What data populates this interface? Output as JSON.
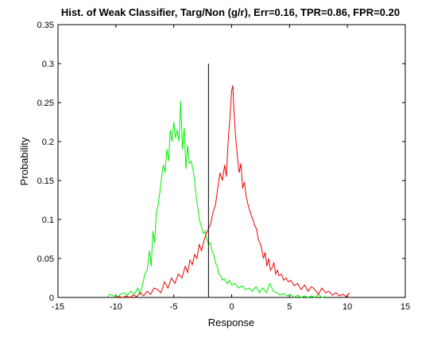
{
  "chart_data": {
    "type": "line",
    "title": "Hist. of Weak Classifier, Targ/Non (g/r), Err=0.16, TPR=0.86, FPR=0.20",
    "xlabel": "Response",
    "ylabel": "Probability",
    "xlim": [
      -15,
      15
    ],
    "ylim": [
      0,
      0.35
    ],
    "xticks": [
      -15,
      -10,
      -5,
      0,
      5,
      10,
      15
    ],
    "yticks": [
      0,
      0.05,
      0.1,
      0.15,
      0.2,
      0.25,
      0.3,
      0.35
    ],
    "xtick_labels": [
      "-15",
      "-10",
      "-5",
      "0",
      "5",
      "10",
      "15"
    ],
    "ytick_labels": [
      "0",
      "0.05",
      "0.1",
      "0.15",
      "0.2",
      "0.25",
      "0.3",
      "0.35"
    ],
    "grid": false,
    "series": [
      {
        "color": "#00ee00",
        "points": [
          [
            -10.8,
            0.0
          ],
          [
            -10.5,
            0.004
          ],
          [
            -10.2,
            0.002
          ],
          [
            -9.9,
            0.001
          ],
          [
            -9.6,
            0.004
          ],
          [
            -9.3,
            0.006
          ],
          [
            -9.0,
            0.003
          ],
          [
            -8.7,
            0.008
          ],
          [
            -8.4,
            0.004
          ],
          [
            -8.1,
            0.012
          ],
          [
            -7.9,
            0.004
          ],
          [
            -7.7,
            0.016
          ],
          [
            -7.5,
            0.03
          ],
          [
            -7.3,
            0.035
          ],
          [
            -7.1,
            0.06
          ],
          [
            -6.95,
            0.04
          ],
          [
            -6.8,
            0.085
          ],
          [
            -6.65,
            0.07
          ],
          [
            -6.5,
            0.11
          ],
          [
            -6.35,
            0.118
          ],
          [
            -6.2,
            0.135
          ],
          [
            -6.05,
            0.155
          ],
          [
            -5.9,
            0.17
          ],
          [
            -5.75,
            0.16
          ],
          [
            -5.6,
            0.19
          ],
          [
            -5.45,
            0.175
          ],
          [
            -5.3,
            0.215
          ],
          [
            -5.15,
            0.2
          ],
          [
            -5.0,
            0.225
          ],
          [
            -4.85,
            0.205
          ],
          [
            -4.7,
            0.215
          ],
          [
            -4.55,
            0.2
          ],
          [
            -4.4,
            0.252
          ],
          [
            -4.25,
            0.19
          ],
          [
            -4.1,
            0.218
          ],
          [
            -3.95,
            0.165
          ],
          [
            -3.8,
            0.195
          ],
          [
            -3.65,
            0.172
          ],
          [
            -3.5,
            0.175
          ],
          [
            -3.35,
            0.165
          ],
          [
            -3.2,
            0.15
          ],
          [
            -3.05,
            0.128
          ],
          [
            -2.9,
            0.112
          ],
          [
            -2.75,
            0.098
          ],
          [
            -2.6,
            0.09
          ],
          [
            -2.45,
            0.082
          ],
          [
            -2.3,
            0.085
          ],
          [
            -2.15,
            0.075
          ],
          [
            -2.0,
            0.068
          ],
          [
            -1.85,
            0.07
          ],
          [
            -1.7,
            0.06
          ],
          [
            -1.55,
            0.055
          ],
          [
            -1.4,
            0.045
          ],
          [
            -1.25,
            0.04
          ],
          [
            -1.1,
            0.03
          ],
          [
            -0.95,
            0.028
          ],
          [
            -0.8,
            0.022
          ],
          [
            -0.65,
            0.024
          ],
          [
            -0.5,
            0.02
          ],
          [
            -0.35,
            0.018
          ],
          [
            -0.2,
            0.022
          ],
          [
            0.0,
            0.016
          ],
          [
            0.3,
            0.018
          ],
          [
            0.6,
            0.012
          ],
          [
            0.9,
            0.015
          ],
          [
            1.2,
            0.01
          ],
          [
            1.5,
            0.012
          ],
          [
            1.8,
            0.008
          ],
          [
            2.1,
            0.014
          ],
          [
            2.4,
            0.006
          ],
          [
            2.7,
            0.012
          ],
          [
            3.0,
            0.006
          ],
          [
            3.3,
            0.018
          ],
          [
            3.6,
            0.008
          ],
          [
            3.9,
            0.006
          ],
          [
            4.2,
            0.003
          ],
          [
            4.5,
            0.005
          ],
          [
            4.8,
            0.002
          ],
          [
            5.1,
            0.004
          ],
          [
            5.4,
            0.0
          ],
          [
            5.7,
            0.003
          ],
          [
            6.0,
            0.0
          ],
          [
            6.3,
            0.002
          ],
          [
            6.6,
            0.0
          ],
          [
            6.9,
            0.002
          ],
          [
            7.2,
            0.0
          ],
          [
            7.5,
            0.004
          ],
          [
            7.8,
            0.0
          ],
          [
            8.1,
            0.001
          ]
        ]
      },
      {
        "color": "#ee0000",
        "points": [
          [
            -10.0,
            0.0
          ],
          [
            -9.7,
            0.001
          ],
          [
            -9.4,
            0.0
          ],
          [
            -9.1,
            0.002
          ],
          [
            -8.8,
            0.0
          ],
          [
            -8.5,
            0.003
          ],
          [
            -8.2,
            0.001
          ],
          [
            -7.9,
            0.006
          ],
          [
            -7.6,
            0.002
          ],
          [
            -7.3,
            0.008
          ],
          [
            -7.0,
            0.004
          ],
          [
            -6.7,
            0.012
          ],
          [
            -6.4,
            0.01
          ],
          [
            -6.1,
            0.006
          ],
          [
            -5.8,
            0.02
          ],
          [
            -5.5,
            0.012
          ],
          [
            -5.2,
            0.025
          ],
          [
            -4.9,
            0.018
          ],
          [
            -4.6,
            0.03
          ],
          [
            -4.3,
            0.025
          ],
          [
            -4.0,
            0.04
          ],
          [
            -3.8,
            0.032
          ],
          [
            -3.6,
            0.048
          ],
          [
            -3.4,
            0.042
          ],
          [
            -3.2,
            0.055
          ],
          [
            -3.0,
            0.05
          ],
          [
            -2.8,
            0.068
          ],
          [
            -2.6,
            0.06
          ],
          [
            -2.4,
            0.072
          ],
          [
            -2.2,
            0.082
          ],
          [
            -2.0,
            0.088
          ],
          [
            -1.8,
            0.095
          ],
          [
            -1.6,
            0.11
          ],
          [
            -1.4,
            0.118
          ],
          [
            -1.2,
            0.14
          ],
          [
            -1.0,
            0.16
          ],
          [
            -0.8,
            0.15
          ],
          [
            -0.6,
            0.17
          ],
          [
            -0.45,
            0.155
          ],
          [
            -0.3,
            0.2
          ],
          [
            -0.15,
            0.23
          ],
          [
            0.0,
            0.265
          ],
          [
            0.1,
            0.272
          ],
          [
            0.2,
            0.24
          ],
          [
            0.35,
            0.205
          ],
          [
            0.5,
            0.18
          ],
          [
            0.65,
            0.16
          ],
          [
            0.8,
            0.172
          ],
          [
            0.95,
            0.14
          ],
          [
            1.1,
            0.148
          ],
          [
            1.25,
            0.13
          ],
          [
            1.4,
            0.12
          ],
          [
            1.55,
            0.112
          ],
          [
            1.7,
            0.105
          ],
          [
            1.85,
            0.1
          ],
          [
            2.0,
            0.092
          ],
          [
            2.15,
            0.088
          ],
          [
            2.3,
            0.075
          ],
          [
            2.45,
            0.07
          ],
          [
            2.6,
            0.062
          ],
          [
            2.75,
            0.05
          ],
          [
            2.9,
            0.058
          ],
          [
            3.05,
            0.04
          ],
          [
            3.2,
            0.05
          ],
          [
            3.35,
            0.035
          ],
          [
            3.5,
            0.038
          ],
          [
            3.65,
            0.045
          ],
          [
            3.8,
            0.03
          ],
          [
            3.95,
            0.035
          ],
          [
            4.1,
            0.028
          ],
          [
            4.3,
            0.03
          ],
          [
            4.5,
            0.022
          ],
          [
            4.7,
            0.025
          ],
          [
            4.9,
            0.02
          ],
          [
            5.1,
            0.022
          ],
          [
            5.4,
            0.015
          ],
          [
            5.7,
            0.018
          ],
          [
            6.0,
            0.01
          ],
          [
            6.3,
            0.016
          ],
          [
            6.6,
            0.008
          ],
          [
            6.9,
            0.014
          ],
          [
            7.2,
            0.01
          ],
          [
            7.5,
            0.004
          ],
          [
            7.8,
            0.012
          ],
          [
            8.1,
            0.006
          ],
          [
            8.4,
            0.008
          ],
          [
            8.7,
            0.003
          ],
          [
            9.0,
            0.006
          ],
          [
            9.3,
            0.002
          ],
          [
            9.6,
            0.004
          ],
          [
            9.9,
            0.001
          ],
          [
            10.2,
            0.006
          ]
        ]
      }
    ],
    "threshold_line": {
      "color": "#000000",
      "x": -2.0,
      "y_range": [
        0,
        0.3
      ]
    }
  }
}
